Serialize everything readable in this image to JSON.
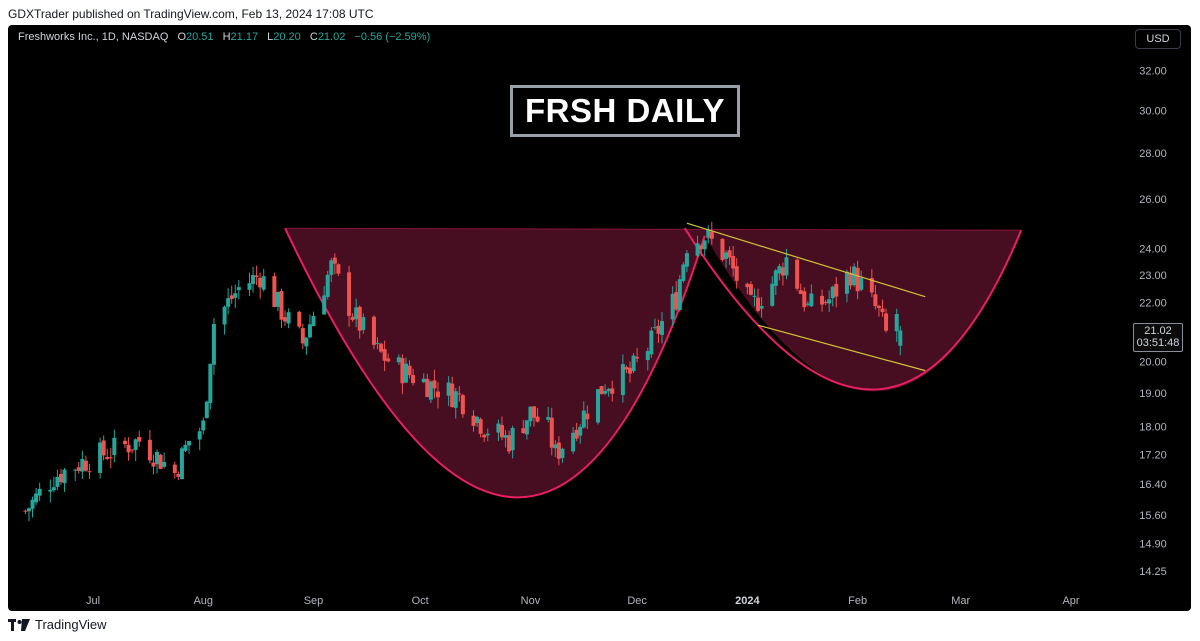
{
  "header": {
    "published": "GDXTrader published on TradingView.com, Feb 13, 2024 17:08 UTC"
  },
  "legend": {
    "symbol": "Freshworks Inc., 1D, NASDAQ",
    "open_label": "O",
    "open": "20.51",
    "high_label": "H",
    "high": "21.17",
    "low_label": "L",
    "low": "20.20",
    "close_label": "C",
    "close": "21.02",
    "change": "−0.56 (−2.59%)"
  },
  "currency_button": "USD",
  "annotation_title": "FRSH DAILY",
  "price_label": {
    "price": "21.02",
    "countdown": "03:51:48"
  },
  "footer": {
    "brand": "TradingView"
  },
  "colors": {
    "up": "#26a69a",
    "down": "#ef5350",
    "cup_fill": "#4a0f22",
    "cup_line": "#e91e63",
    "channel": "#d4c23a",
    "background": "#000000"
  },
  "chart_data": {
    "type": "candlestick",
    "symbol": "FRSH",
    "interval": "1D",
    "y_scale": "log",
    "y_ticks": [
      "32.00",
      "30.00",
      "28.00",
      "26.00",
      "24.00",
      "23.00",
      "22.00",
      "21.00",
      "20.00",
      "19.00",
      "18.00",
      "17.20",
      "16.40",
      "15.60",
      "14.90",
      "14.25"
    ],
    "x_ticks": [
      {
        "label": "Jul",
        "date": "2023-07-01",
        "bold": false
      },
      {
        "label": "Aug",
        "date": "2023-08-01",
        "bold": false
      },
      {
        "label": "Sep",
        "date": "2023-09-01",
        "bold": false
      },
      {
        "label": "Oct",
        "date": "2023-10-01",
        "bold": false
      },
      {
        "label": "Nov",
        "date": "2023-11-01",
        "bold": false
      },
      {
        "label": "Dec",
        "date": "2023-12-01",
        "bold": false
      },
      {
        "label": "2024",
        "date": "2024-01-01",
        "bold": true
      },
      {
        "label": "Feb",
        "date": "2024-02-01",
        "bold": false
      },
      {
        "label": "Mar",
        "date": "2024-03-01",
        "bold": false
      },
      {
        "label": "Apr",
        "date": "2024-04-01",
        "bold": false
      }
    ],
    "close_path": [
      [
        "2023-06-12",
        15.7
      ],
      [
        "2023-06-20",
        16.6
      ],
      [
        "2023-06-28",
        17.0
      ],
      [
        "2023-07-06",
        17.3
      ],
      [
        "2023-07-14",
        17.6
      ],
      [
        "2023-07-24",
        16.7
      ],
      [
        "2023-07-28",
        17.6
      ],
      [
        "2023-08-01",
        18.0
      ],
      [
        "2023-08-04",
        21.3
      ],
      [
        "2023-08-11",
        22.5
      ],
      [
        "2023-08-17",
        23.0
      ],
      [
        "2023-08-23",
        21.7
      ],
      [
        "2023-08-29",
        20.6
      ],
      [
        "2023-09-06",
        23.3
      ],
      [
        "2023-09-12",
        21.6
      ],
      [
        "2023-09-19",
        20.3
      ],
      [
        "2023-09-26",
        19.7
      ],
      [
        "2023-10-05",
        19.2
      ],
      [
        "2023-10-12",
        18.9
      ],
      [
        "2023-10-19",
        18.0
      ],
      [
        "2023-10-26",
        17.6
      ],
      [
        "2023-11-01",
        18.4
      ],
      [
        "2023-11-06",
        17.9
      ],
      [
        "2023-11-08",
        17.2
      ],
      [
        "2023-11-15",
        18.2
      ],
      [
        "2023-11-22",
        19.3
      ],
      [
        "2023-11-29",
        19.6
      ],
      [
        "2023-12-05",
        20.6
      ],
      [
        "2023-12-12",
        22.2
      ],
      [
        "2023-12-15",
        24.2
      ],
      [
        "2023-12-20",
        24.5
      ],
      [
        "2023-12-26",
        23.7
      ],
      [
        "2024-01-02",
        21.8
      ],
      [
        "2024-01-08",
        22.7
      ],
      [
        "2024-01-12",
        23.6
      ],
      [
        "2024-01-18",
        21.8
      ],
      [
        "2024-01-24",
        22.1
      ],
      [
        "2024-01-30",
        23.1
      ],
      [
        "2024-02-02",
        22.6
      ],
      [
        "2024-02-07",
        21.6
      ],
      [
        "2024-02-09",
        20.9
      ],
      [
        "2024-02-12",
        21.6
      ],
      [
        "2024-02-13",
        21.02
      ]
    ],
    "last_candle": {
      "date": "2024-02-13",
      "open": 20.51,
      "high": 21.17,
      "low": 20.2,
      "close": 21.02
    },
    "patterns": {
      "cup_rim_price": 24.8,
      "cup_bottom_price": 16.1,
      "handle_bottom_price": 19.0,
      "channel_upper": [
        [
          "2023-12-15",
          25.0
        ],
        [
          "2024-02-20",
          22.2
        ]
      ],
      "channel_lower": [
        [
          "2024-01-04",
          21.2
        ],
        [
          "2024-02-20",
          19.7
        ]
      ]
    }
  }
}
